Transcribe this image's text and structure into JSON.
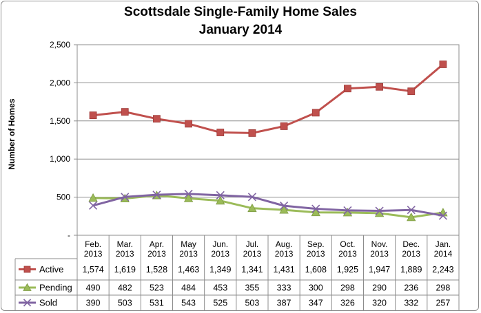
{
  "chart_data": {
    "type": "line",
    "title": "Scottsdale Single-Family Home Sales",
    "subtitle": "January 2014",
    "ylabel": "Number of Homes",
    "xlabel": "",
    "ylim": [
      0,
      2500
    ],
    "yticks": [
      0,
      500,
      1000,
      1500,
      2000,
      2500
    ],
    "ytick_labels": [
      "-",
      "500",
      "1,000",
      "1,500",
      "2,000",
      "2,500"
    ],
    "grid": true,
    "legend": "data-table",
    "categories": [
      [
        "Feb.",
        "2013"
      ],
      [
        "Mar.",
        "2013"
      ],
      [
        "Apr.",
        "2013"
      ],
      [
        "May",
        "2013"
      ],
      [
        "Jun.",
        "2013"
      ],
      [
        "Jul.",
        "2013"
      ],
      [
        "Aug.",
        "2013"
      ],
      [
        "Sep.",
        "2013"
      ],
      [
        "Oct.",
        "2013"
      ],
      [
        "Nov.",
        "2013"
      ],
      [
        "Dec.",
        "2013"
      ],
      [
        "Jan.",
        "2014"
      ]
    ],
    "series": [
      {
        "name": "Active",
        "color": "#c0504d",
        "marker": "square",
        "values": [
          1574,
          1619,
          1528,
          1463,
          1349,
          1341,
          1431,
          1608,
          1925,
          1947,
          1889,
          2243
        ],
        "labels": [
          "1,574",
          "1,619",
          "1,528",
          "1,463",
          "1,349",
          "1,341",
          "1,431",
          "1,608",
          "1,925",
          "1,947",
          "1,889",
          "2,243"
        ]
      },
      {
        "name": "Pending",
        "color": "#9bbb59",
        "marker": "triangle",
        "values": [
          490,
          482,
          523,
          484,
          453,
          355,
          333,
          300,
          298,
          290,
          236,
          298
        ],
        "labels": [
          "490",
          "482",
          "523",
          "484",
          "453",
          "355",
          "333",
          "300",
          "298",
          "290",
          "236",
          "298"
        ]
      },
      {
        "name": "Sold",
        "color": "#8064a2",
        "marker": "x",
        "values": [
          390,
          503,
          531,
          543,
          525,
          503,
          387,
          347,
          326,
          320,
          332,
          257
        ],
        "labels": [
          "390",
          "503",
          "531",
          "543",
          "525",
          "503",
          "387",
          "347",
          "326",
          "320",
          "332",
          "257"
        ]
      }
    ]
  }
}
